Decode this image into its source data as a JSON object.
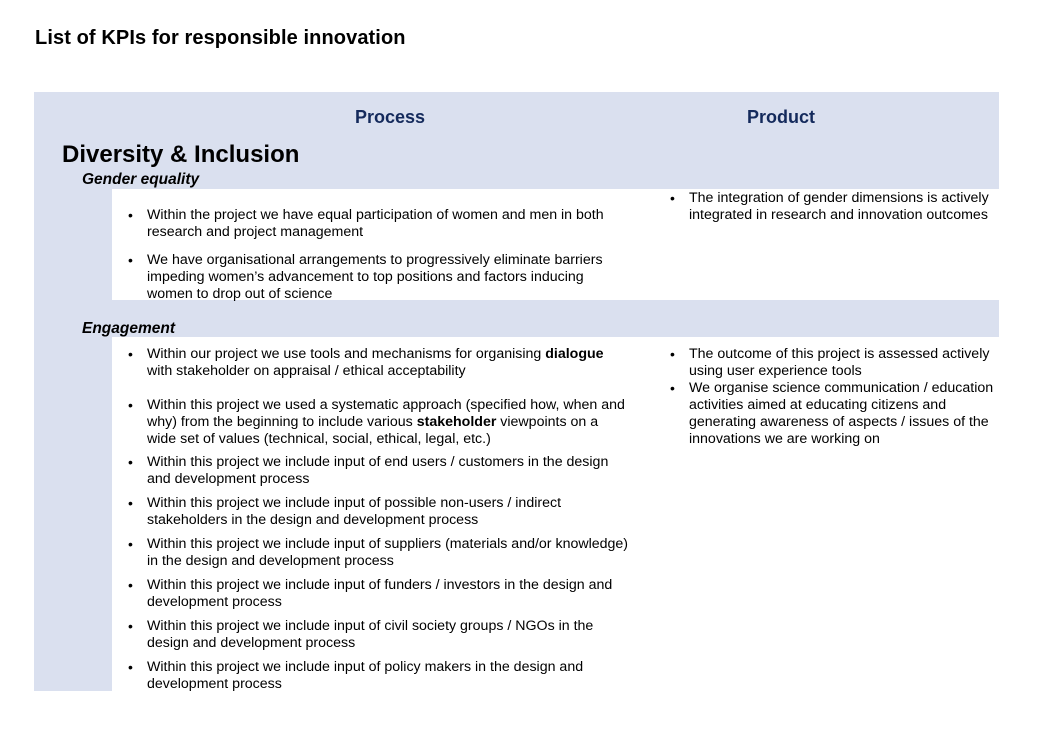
{
  "page_title": "List of KPIs for responsible innovation",
  "columns": {
    "process": "Process",
    "product": "Product"
  },
  "section": {
    "title": "Diversity & Inclusion"
  },
  "gender_equality": {
    "heading": "Gender equality",
    "process": [
      "Within the project we have equal participation of women and men in both research and project management",
      "We have organisational arrangements to progressively eliminate barriers impeding women’s advancement to top positions and factors inducing women to drop out of science"
    ],
    "product": [
      "The integration of gender dimensions is actively integrated in research and innovation outcomes"
    ]
  },
  "engagement": {
    "heading": "Engagement",
    "process": [
      {
        "before": "Within our project we use tools and mechanisms for organising ",
        "bold": "dialogue",
        "after": " with stakeholder on appraisal / ethical acceptability"
      },
      {
        "before": "Within this project we used a systematic approach (specified how, when and why) from the beginning to include various ",
        "bold": "stakeholder",
        "after": " viewpoints on a wide set of values (technical, social, ethical, legal, etc.)"
      },
      "Within this project we include input of end users / customers in the design and development process",
      "Within this project we include input of possible non-users / indirect stakeholders in the design and development process",
      "Within this project we include input of suppliers (materials and/or knowledge) in the design and development process",
      "Within this project we include input of funders / investors in the design and development process",
      "Within this project we include input of civil society groups / NGOs in the design and development process",
      "Within this project we include input of policy makers in the design and development process"
    ],
    "product": [
      "The outcome of this project is assessed actively using user experience tools",
      "We organise science communication / education activities aimed at educating citizens and generating awareness of aspects / issues of the innovations we are working on"
    ]
  },
  "colors": {
    "band": "#dae0ef",
    "column_heading": "#142a5c"
  }
}
